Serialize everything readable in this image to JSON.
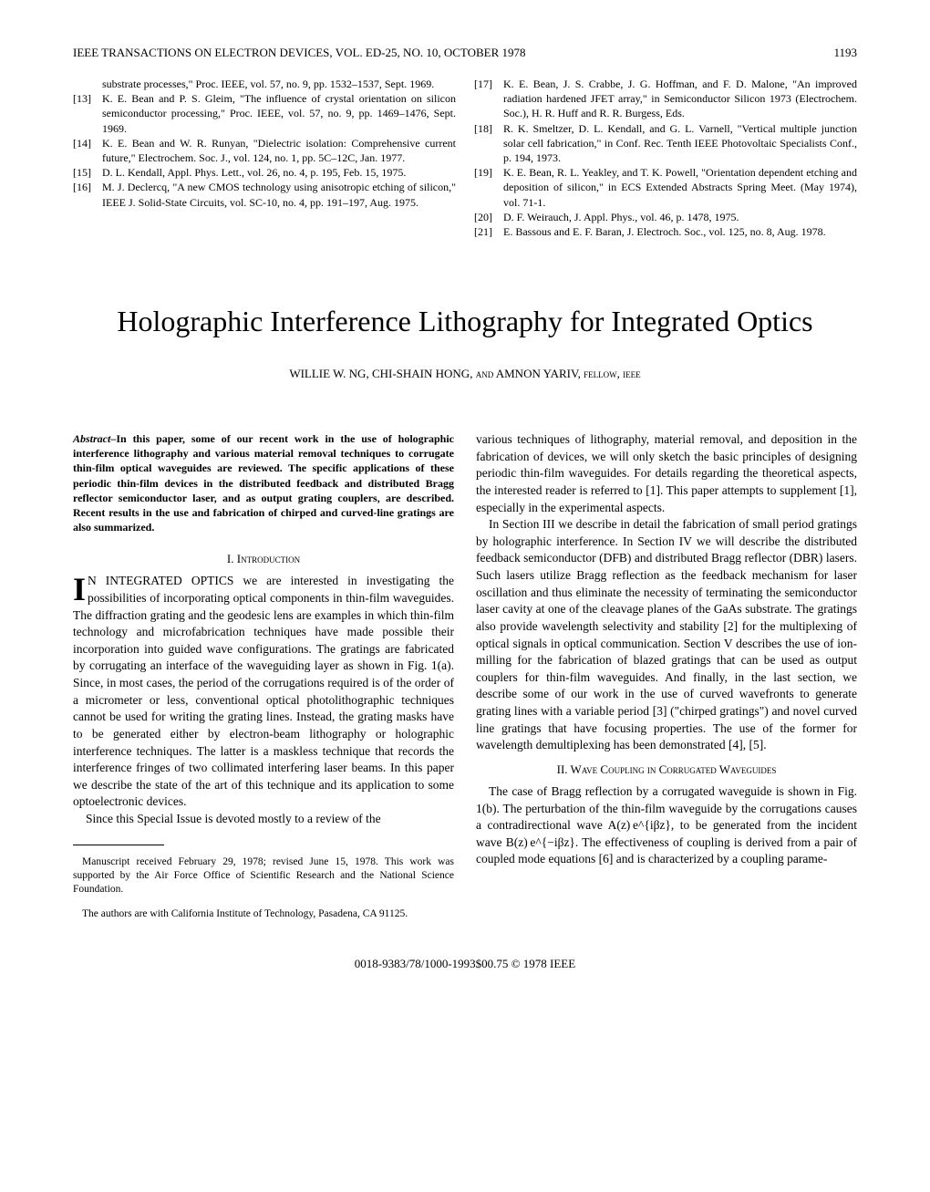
{
  "header": {
    "journal": "IEEE TRANSACTIONS ON ELECTRON DEVICES, VOL. ED-25, NO. 10, OCTOBER 1978",
    "page_number": "1193"
  },
  "refs_left": [
    {
      "num": "",
      "text_indent": "substrate processes,\" Proc. IEEE, vol. 57, no. 9, pp. 1532–1537, Sept. 1969."
    },
    {
      "num": "[13]",
      "text": "K. E. Bean and P. S. Gleim, \"The influence of crystal orientation on silicon semiconductor processing,\" Proc. IEEE, vol. 57, no. 9, pp. 1469–1476, Sept. 1969."
    },
    {
      "num": "[14]",
      "text": "K. E. Bean and W. R. Runyan, \"Dielectric isolation: Comprehensive current future,\" Electrochem. Soc. J., vol. 124, no. 1, pp. 5C–12C, Jan. 1977."
    },
    {
      "num": "[15]",
      "text": "D. L. Kendall, Appl. Phys. Lett., vol. 26, no. 4, p. 195, Feb. 15, 1975."
    },
    {
      "num": "[16]",
      "text": "M. J. Declercq, \"A new CMOS technology using anisotropic etching of silicon,\" IEEE J. Solid-State Circuits, vol. SC-10, no. 4, pp. 191–197, Aug. 1975."
    }
  ],
  "refs_right": [
    {
      "num": "[17]",
      "text": "K. E. Bean, J. S. Crabbe, J. G. Hoffman, and F. D. Malone, \"An improved radiation hardened JFET array,\" in Semiconductor Silicon 1973 (Electrochem. Soc.), H. R. Huff and R. R. Burgess, Eds."
    },
    {
      "num": "[18]",
      "text": "R. K. Smeltzer, D. L. Kendall, and G. L. Varnell, \"Vertical multiple junction solar cell fabrication,\" in Conf. Rec. Tenth IEEE Photovoltaic Specialists Conf., p. 194, 1973."
    },
    {
      "num": "[19]",
      "text": "K. E. Bean, R. L. Yeakley, and T. K. Powell, \"Orientation dependent etching and deposition of silicon,\" in ECS Extended Abstracts Spring Meet. (May 1974), vol. 71-1."
    },
    {
      "num": "[20]",
      "text": "D. F. Weirauch, J. Appl. Phys., vol. 46, p. 1478, 1975."
    },
    {
      "num": "[21]",
      "text": "E. Bassous and E. F. Baran, J. Electroch. Soc., vol. 125, no. 8, Aug. 1978."
    }
  ],
  "article": {
    "title": "Holographic Interference Lithography for Integrated Optics",
    "authors_html": "WILLIE W. NG, CHI-SHAIN HONG, <span class=\"sc\">and</span> AMNON YARIV, <span class=\"sc\">fellow, ieee</span>"
  },
  "abstract": {
    "label": "Abstract",
    "text": "–In this paper, some of our recent work in the use of holographic interference lithography and various material removal techniques to corrugate thin-film optical waveguides are reviewed. The specific applications of these periodic thin-film devices in the distributed feedback and distributed Bragg reflector semiconductor laser, and as output grating couplers, are described. Recent results in the use and fabrication of chirped and curved-line gratings are also summarized."
  },
  "sections": {
    "intro_head": "I. Introduction",
    "intro_first": "N INTEGRATED OPTICS we are interested in investigating the possibilities of incorporating optical components in thin-film waveguides. The diffraction grating and the geodesic lens are examples in which thin-film technology and microfabrication techniques have made possible their incorporation into guided wave configurations. The gratings are fabricated by corrugating an interface of the waveguiding layer as shown in Fig. 1(a). Since, in most cases, the period of the corrugations required is of the order of a micrometer or less, conventional optical photolithographic techniques cannot be used for writing the grating lines. Instead, the grating masks have to be generated either by electron-beam lithography or holographic interference techniques. The latter is a maskless technique that records the interference fringes of two collimated interfering laser beams. In this paper we describe the state of the art of this technique and its application to some optoelectronic devices.",
    "intro_second": "Since this Special Issue is devoted mostly to a review of the",
    "right_top": "various techniques of lithography, material removal, and deposition in the fabrication of devices, we will only sketch the basic principles of designing periodic thin-film waveguides. For details regarding the theoretical aspects, the interested reader is referred to [1]. This paper attempts to supplement [1], especially in the experimental aspects.",
    "right_para2": "In Section III we describe in detail the fabrication of small period gratings by holographic interference. In Section IV we will describe the distributed feedback semiconductor (DFB) and distributed Bragg reflector (DBR) lasers. Such lasers utilize Bragg reflection as the feedback mechanism for laser oscillation and thus eliminate the necessity of terminating the semiconductor laser cavity at one of the cleavage planes of the GaAs substrate. The gratings also provide wavelength selectivity and stability [2] for the multiplexing of optical signals in optical communication. Section V describes the use of ion-milling for the fabrication of blazed gratings that can be used as output couplers for thin-film waveguides. And finally, in the last section, we describe some of our work in the use of curved wavefronts to generate grating lines with a variable period [3] (\"chirped gratings\") and novel curved line gratings that have focusing properties. The use of the former for wavelength demultiplexing has been demonstrated [4], [5].",
    "sec2_head": "II. Wave Coupling in Corrugated Waveguides",
    "sec2_text": "The case of Bragg reflection by a corrugated waveguide is shown in Fig. 1(b). The perturbation of the thin-film waveguide by the corrugations causes a contradirectional wave A(z) e^{iβz}, to be generated from the incident wave B(z) e^{−iβz}. The effectiveness of coupling is derived from a pair of coupled mode equations [6] and is characterized by a coupling parame-"
  },
  "footnotes": {
    "f1": "Manuscript received February 29, 1978; revised June 15, 1978. This work was supported by the Air Force Office of Scientific Research and the National Science Foundation.",
    "f2": "The authors are with California Institute of Technology, Pasadena, CA 91125."
  },
  "footer": {
    "text": "0018-9383/78/1000-1993$00.75 © 1978 IEEE"
  }
}
